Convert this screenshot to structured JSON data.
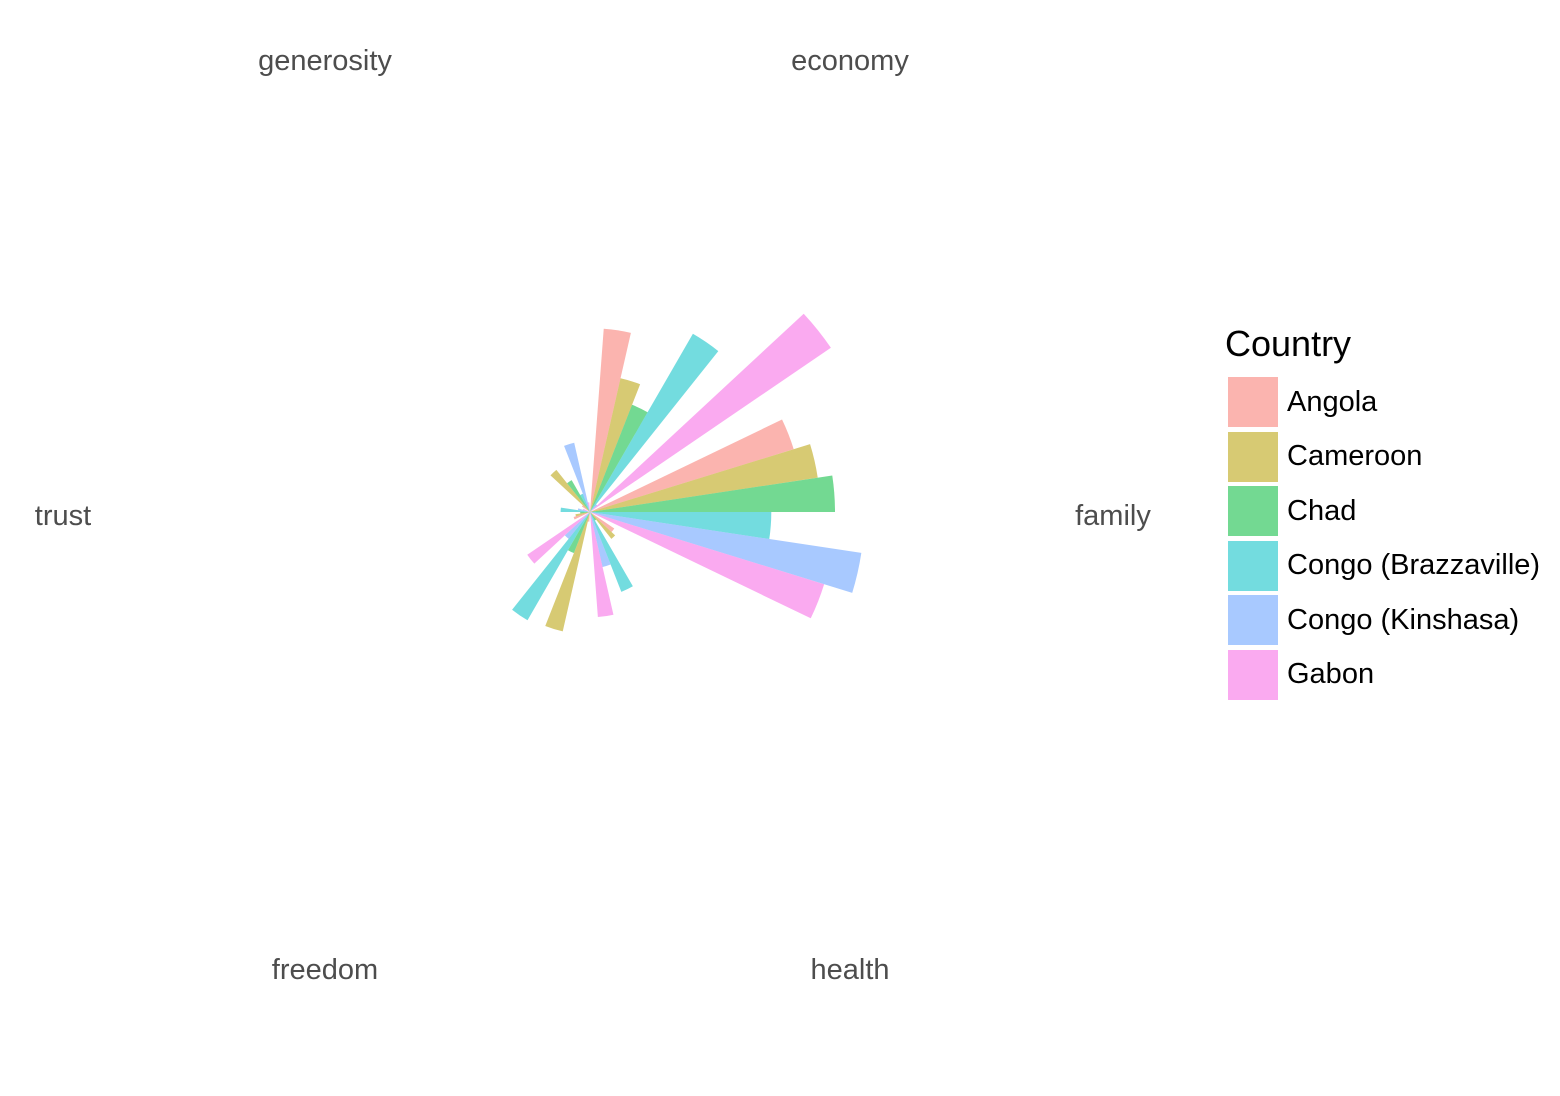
{
  "chart_data": {
    "type": "polar-bar",
    "legend": {
      "title": "Country",
      "position": "right"
    },
    "categories": [
      "economy",
      "family",
      "health",
      "freedom",
      "trust",
      "generosity"
    ],
    "series": [
      {
        "name": "Angola",
        "color": "#F8766D",
        "values": [
          0.75,
          0.87,
          0.12,
          0.04,
          0.07,
          0.04
        ]
      },
      {
        "name": "Cameroon",
        "color": "#B79F00",
        "values": [
          0.56,
          0.94,
          0.14,
          0.5,
          0.06,
          0.22
        ]
      },
      {
        "name": "Chad",
        "color": "#00BA38",
        "values": [
          0.47,
          1.0,
          0.04,
          0.18,
          0.04,
          0.15
        ]
      },
      {
        "name": "Congo (Brazzaville)",
        "color": "#00BFC4",
        "values": [
          0.84,
          0.74,
          0.35,
          0.51,
          0.12,
          0.08
        ]
      },
      {
        "name": "Congo (Kinshasa)",
        "color": "#619CFF",
        "values": [
          0.04,
          1.12,
          0.23,
          0.14,
          0.05,
          0.29
        ]
      },
      {
        "name": "Gabon",
        "color": "#F564E3",
        "values": [
          1.19,
          1.0,
          0.43,
          0.31,
          0.03,
          0.04
        ]
      }
    ]
  }
}
